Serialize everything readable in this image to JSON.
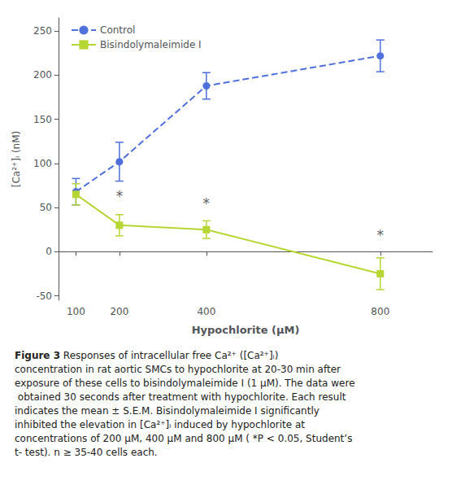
{
  "chart_data": {
    "type": "line",
    "x": [
      100,
      200,
      400,
      800
    ],
    "series": [
      {
        "name": "Control",
        "values": [
          68,
          102,
          188,
          222
        ],
        "yerr": [
          15,
          22,
          15,
          18
        ],
        "marker": "circle",
        "line_style": "dashed"
      },
      {
        "name": "Bisindolymaleimide I",
        "values": [
          65,
          30,
          25,
          -25
        ],
        "yerr": [
          12,
          12,
          10,
          18
        ],
        "marker": "square",
        "line_style": "solid"
      }
    ],
    "xlabel": "Hypochlorite (μM)",
    "ylabel": "[Ca²⁺]ᵢ (nM)",
    "xlim": [
      60,
      920
    ],
    "xticks": [
      100,
      200,
      400,
      800
    ],
    "ylim": [
      -55,
      265
    ],
    "yticks": [
      -50,
      0,
      50,
      100,
      150,
      200,
      250
    ],
    "grid": false,
    "legend": "upper left",
    "annotations": [
      {
        "text": "*",
        "x": 200,
        "y": 55
      },
      {
        "text": "*",
        "x": 400,
        "y": 47
      },
      {
        "text": "*",
        "x": 800,
        "y": 11
      }
    ],
    "caption_title": "Figure 3",
    "caption": "Responses of intracellular free Ca²⁺ ([Ca²⁺]ᵢ) concentration in rat aortic SMCs to hypochlorite at 20-30 min after exposure of these cells to bisindolymaleimide I (1 μM). The data were obtained 30 seconds after treatment with hypochlorite. Each result indicates the mean ± S.E.M. Bisindolymaleimide I significantly inhibited the elevation in [Ca²⁺]ᵢ induced by hypochlorite at concentrations of 200 μM, 400 μM and 800 μM ( *P < 0.05, Student’s t- test). n ≥ 35-40 cells each."
  }
}
